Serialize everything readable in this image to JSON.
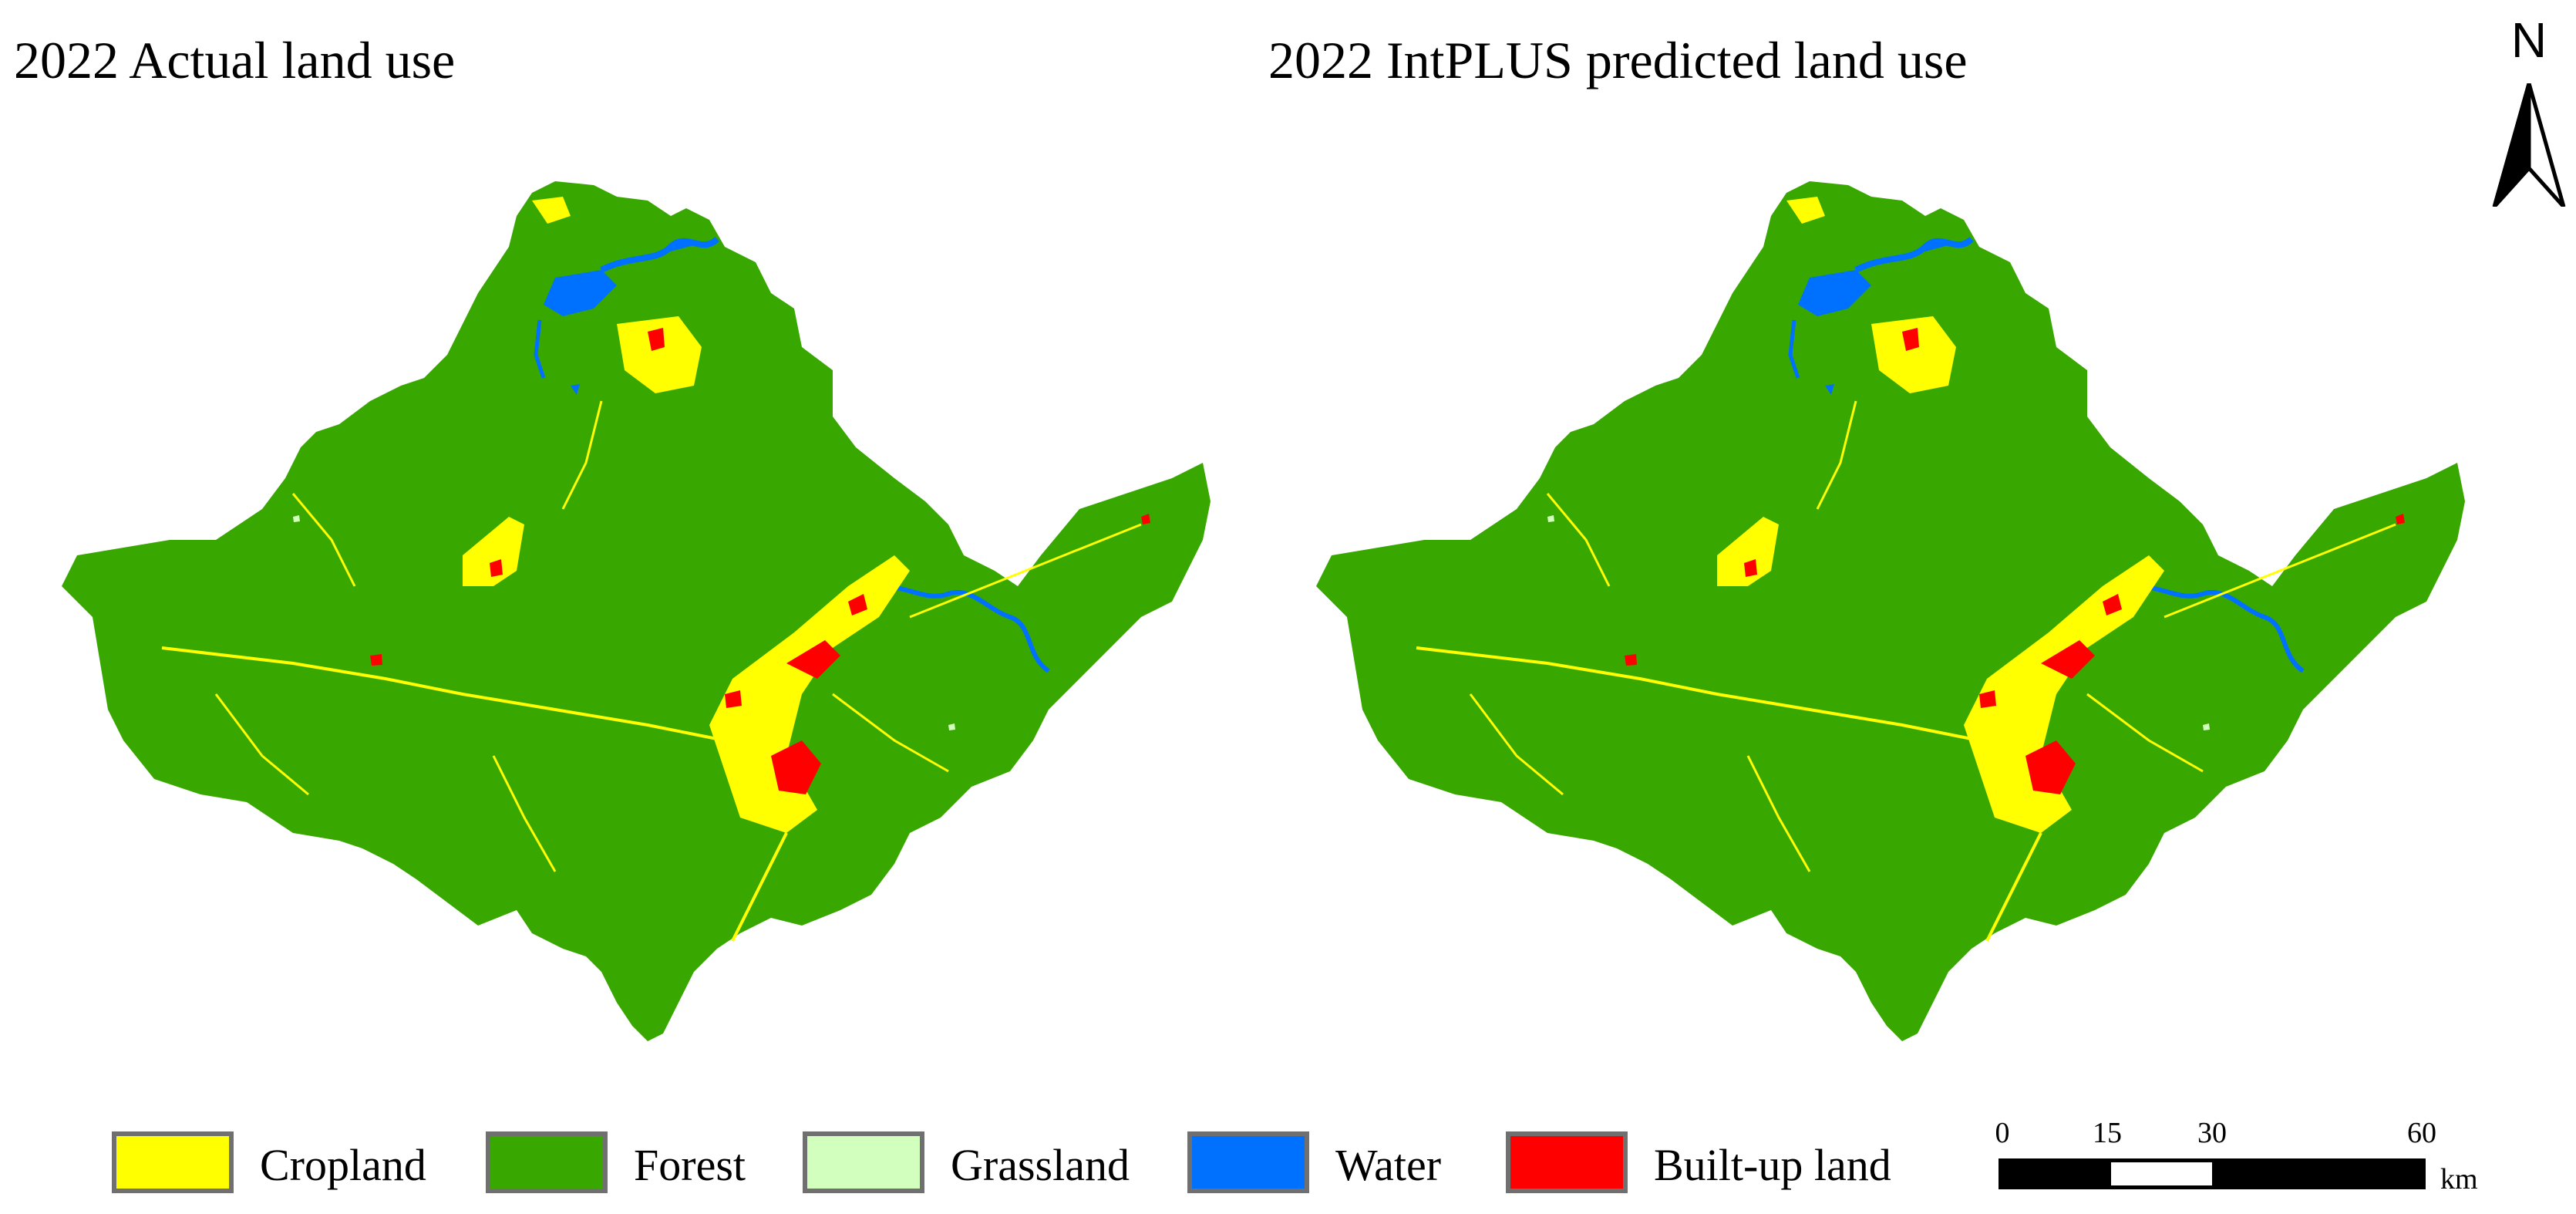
{
  "titles": {
    "left": "2022 Actual land use",
    "right": "2022 IntPLUS predicted land use"
  },
  "maps": [
    {
      "id": "actual",
      "title_key": "left"
    },
    {
      "id": "predicted",
      "title_key": "right"
    }
  ],
  "north_arrow": {
    "letter": "N",
    "icon": "north-arrow-icon"
  },
  "legend": {
    "items": [
      {
        "label": "Cropland",
        "color": "#ffff00"
      },
      {
        "label": "Forest",
        "color": "#38a800"
      },
      {
        "label": "Grassland",
        "color": "#d3ffbe"
      },
      {
        "label": "Water",
        "color": "#0070ff"
      },
      {
        "label": "Built-up land",
        "color": "#ff0000"
      }
    ]
  },
  "scale_bar": {
    "ticks": [
      "0",
      "15",
      "30",
      "60"
    ],
    "unit": "km"
  },
  "colors": {
    "cropland": "#ffff00",
    "forest": "#38a800",
    "grassland": "#d3ffbe",
    "water": "#0070ff",
    "built_up": "#ff0000"
  }
}
